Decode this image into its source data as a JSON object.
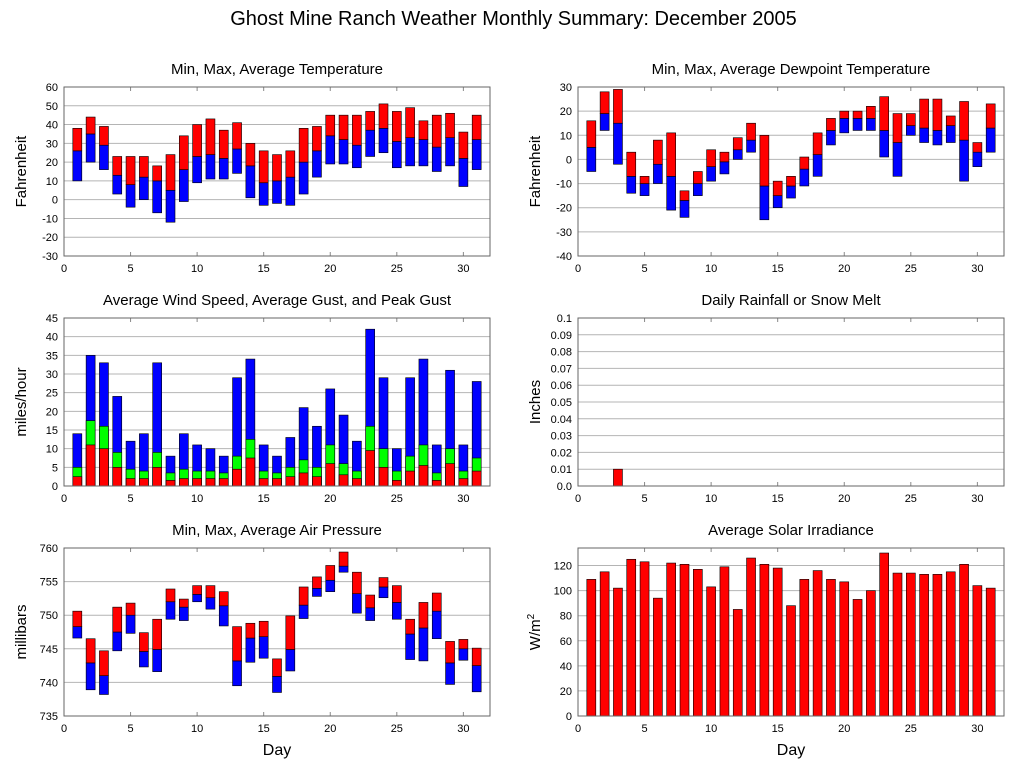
{
  "title": "Ghost Mine Ranch Weather Monthly Summary: December 2005",
  "colors": {
    "red": "#ff0000",
    "blue": "#0000ff",
    "green": "#00ff00",
    "grid": "#b4b4b4",
    "frame": "#666666"
  },
  "chart_data": [
    {
      "id": "temperature",
      "type": "bar",
      "subtype": "floating-range",
      "title": "Min, Max, Average Temperature",
      "xlabel": "",
      "ylabel": "Fahrenheit",
      "xlim": [
        0,
        32
      ],
      "ylim": [
        -30,
        60
      ],
      "xticks": [
        0,
        5,
        10,
        15,
        20,
        25,
        30
      ],
      "yticks": [
        -30,
        -20,
        -10,
        0,
        10,
        20,
        30,
        40,
        50,
        60
      ],
      "grid": true,
      "x": [
        1,
        2,
        3,
        4,
        5,
        6,
        7,
        8,
        9,
        10,
        11,
        12,
        13,
        14,
        15,
        16,
        17,
        18,
        19,
        20,
        21,
        22,
        23,
        24,
        25,
        26,
        27,
        28,
        29,
        30,
        31
      ],
      "series": [
        {
          "name": "Max",
          "values": [
            38,
            44,
            39,
            23,
            23,
            23,
            18,
            24,
            34,
            40,
            43,
            37,
            41,
            30,
            26,
            24,
            26,
            38,
            39,
            45,
            45,
            45,
            47,
            51,
            47,
            49,
            42,
            45,
            46,
            36,
            45
          ]
        },
        {
          "name": "Average",
          "values": [
            26,
            35,
            29,
            13,
            8,
            12,
            10,
            5,
            16,
            23,
            24,
            22,
            27,
            18,
            9,
            10,
            12,
            20,
            26,
            34,
            32,
            29,
            37,
            38,
            31,
            33,
            32,
            28,
            33,
            22,
            32
          ]
        },
        {
          "name": "Min",
          "values": [
            10,
            20,
            16,
            3,
            -4,
            0,
            -7,
            -12,
            -1,
            9,
            11,
            11,
            14,
            1,
            -3,
            -2,
            -3,
            3,
            12,
            19,
            19,
            17,
            23,
            25,
            17,
            18,
            18,
            15,
            18,
            7,
            16
          ]
        }
      ]
    },
    {
      "id": "dewpoint",
      "type": "bar",
      "subtype": "floating-range",
      "title": "Min, Max, Average Dewpoint Temperature",
      "xlabel": "",
      "ylabel": "Fahrenheit",
      "xlim": [
        0,
        32
      ],
      "ylim": [
        -40,
        30
      ],
      "xticks": [
        0,
        5,
        10,
        15,
        20,
        25,
        30
      ],
      "yticks": [
        -40,
        -30,
        -20,
        -10,
        0,
        10,
        20,
        30
      ],
      "grid": true,
      "x": [
        1,
        2,
        3,
        4,
        5,
        6,
        7,
        8,
        9,
        10,
        11,
        12,
        13,
        14,
        15,
        16,
        17,
        18,
        19,
        20,
        21,
        22,
        23,
        24,
        25,
        26,
        27,
        28,
        29,
        30,
        31
      ],
      "series": [
        {
          "name": "Max",
          "values": [
            16,
            28,
            29,
            3,
            -7,
            8,
            11,
            -13,
            -5,
            4,
            3,
            9,
            15,
            10,
            -9,
            -7,
            1,
            11,
            17,
            20,
            20,
            22,
            26,
            19,
            19,
            25,
            25,
            18,
            24,
            7,
            23
          ]
        },
        {
          "name": "Average",
          "values": [
            5,
            19,
            15,
            -7,
            -10,
            -2,
            -7,
            -17,
            -10,
            -3,
            -1,
            4,
            8,
            -11,
            -15,
            -11,
            -4,
            2,
            12,
            17,
            17,
            17,
            12,
            7,
            14,
            13,
            12,
            14,
            8,
            3,
            13
          ]
        },
        {
          "name": "Min",
          "values": [
            -5,
            12,
            -2,
            -14,
            -15,
            -10,
            -21,
            -24,
            -15,
            -9,
            -6,
            0,
            3,
            -25,
            -20,
            -16,
            -11,
            -7,
            6,
            11,
            12,
            12,
            1,
            -7,
            10,
            7,
            6,
            7,
            -9,
            -3,
            3
          ]
        }
      ]
    },
    {
      "id": "wind",
      "type": "bar",
      "subtype": "stacked-overlay",
      "title": "Average Wind Speed, Average Gust, and Peak Gust",
      "xlabel": "",
      "ylabel": "miles/hour",
      "xlim": [
        0,
        32
      ],
      "ylim": [
        0,
        45
      ],
      "xticks": [
        0,
        5,
        10,
        15,
        20,
        25,
        30
      ],
      "yticks": [
        0,
        5,
        10,
        15,
        20,
        25,
        30,
        35,
        40,
        45
      ],
      "grid": true,
      "x": [
        1,
        2,
        3,
        4,
        5,
        6,
        7,
        8,
        9,
        10,
        11,
        12,
        13,
        14,
        15,
        16,
        17,
        18,
        19,
        20,
        21,
        22,
        23,
        24,
        25,
        26,
        27,
        28,
        29,
        30,
        31
      ],
      "series": [
        {
          "name": "Peak Gust",
          "values": [
            14,
            35,
            33,
            24,
            12,
            14,
            33,
            8,
            14,
            11,
            10,
            8,
            29,
            34,
            11,
            8,
            13,
            21,
            16,
            26,
            19,
            12,
            42,
            29,
            10,
            29,
            34,
            11,
            31,
            11,
            28
          ]
        },
        {
          "name": "Average Gust",
          "values": [
            5,
            17.5,
            16,
            9,
            4.5,
            4,
            9,
            3.5,
            4.5,
            4,
            4,
            3.5,
            8,
            12.5,
            4,
            3.5,
            5,
            7,
            5,
            11,
            6,
            4,
            16,
            10,
            4,
            8,
            11,
            3.5,
            10,
            4,
            7.5
          ]
        },
        {
          "name": "Average Wind Speed",
          "values": [
            2.5,
            11,
            10,
            5,
            2,
            2,
            5,
            1.5,
            2,
            2,
            2,
            2,
            4.5,
            7.5,
            2,
            2,
            2.5,
            3.5,
            2.5,
            6,
            3,
            2,
            9.5,
            5,
            1.5,
            4,
            5.5,
            1.5,
            6,
            2,
            4
          ]
        }
      ]
    },
    {
      "id": "rainfall",
      "type": "bar",
      "title": "Daily Rainfall or Snow Melt",
      "xlabel": "",
      "ylabel": "Inches",
      "xlim": [
        0,
        32
      ],
      "ylim": [
        0,
        0.1
      ],
      "xticks": [
        0,
        5,
        10,
        15,
        20,
        25,
        30
      ],
      "yticks": [
        "0.0",
        "0.01",
        "0.02",
        "0.03",
        "0.04",
        "0.05",
        "0.06",
        "0.07",
        "0.08",
        "0.09",
        "0.1"
      ],
      "grid": true,
      "x": [
        1,
        2,
        3,
        4,
        5,
        6,
        7,
        8,
        9,
        10,
        11,
        12,
        13,
        14,
        15,
        16,
        17,
        18,
        19,
        20,
        21,
        22,
        23,
        24,
        25,
        26,
        27,
        28,
        29,
        30,
        31
      ],
      "values": [
        0,
        0,
        0.01,
        0,
        0,
        0,
        0,
        0,
        0,
        0,
        0,
        0,
        0,
        0,
        0,
        0,
        0,
        0,
        0,
        0,
        0,
        0,
        0,
        0,
        0,
        0,
        0,
        0,
        0,
        0,
        0
      ]
    },
    {
      "id": "pressure",
      "type": "bar",
      "subtype": "floating-range",
      "title": "Min, Max, Average Air Pressure",
      "xlabel": "Day",
      "ylabel": "millibars",
      "xlim": [
        0,
        32
      ],
      "ylim": [
        735,
        760
      ],
      "xticks": [
        0,
        5,
        10,
        15,
        20,
        25,
        30
      ],
      "yticks": [
        735,
        740,
        745,
        750,
        755,
        760
      ],
      "grid": true,
      "x": [
        1,
        2,
        3,
        4,
        5,
        6,
        7,
        8,
        9,
        10,
        11,
        12,
        13,
        14,
        15,
        16,
        17,
        18,
        19,
        20,
        21,
        22,
        23,
        24,
        25,
        26,
        27,
        28,
        29,
        30,
        31
      ],
      "series": [
        {
          "name": "Max",
          "values": [
            750.6,
            746.5,
            744.7,
            751.2,
            751.8,
            747.4,
            749.4,
            753.9,
            752.4,
            754.4,
            754.4,
            753.5,
            748.3,
            748.8,
            749.1,
            743.5,
            749.9,
            754.2,
            755.7,
            757.4,
            759.4,
            756.4,
            753.0,
            755.6,
            754.4,
            749.4,
            751.9,
            753.3,
            746.1,
            746.4,
            745.1
          ]
        },
        {
          "name": "Average",
          "values": [
            748.3,
            742.9,
            741.0,
            747.5,
            750.0,
            744.6,
            744.9,
            752.0,
            751.2,
            753.1,
            752.6,
            751.4,
            743.2,
            746.6,
            746.8,
            740.9,
            744.9,
            751.5,
            754.0,
            755.2,
            757.3,
            753.2,
            751.1,
            754.2,
            751.9,
            747.2,
            748.1,
            750.6,
            742.9,
            745.0,
            742.5
          ]
        },
        {
          "name": "Min",
          "values": [
            746.6,
            738.9,
            738.2,
            744.7,
            747.3,
            742.3,
            741.6,
            749.4,
            749.2,
            752.0,
            750.9,
            748.4,
            739.5,
            743.0,
            743.6,
            738.5,
            741.7,
            749.5,
            752.8,
            753.5,
            756.4,
            750.3,
            749.2,
            752.6,
            749.4,
            743.4,
            743.2,
            746.5,
            739.7,
            743.3,
            738.6
          ]
        }
      ]
    },
    {
      "id": "solar",
      "type": "bar",
      "title": "Average Solar Irradiance",
      "xlabel": "Day",
      "ylabel": "W/m",
      "ylabel_superscript": "2",
      "xlim": [
        0,
        32
      ],
      "ylim": [
        0,
        134
      ],
      "xticks": [
        0,
        5,
        10,
        15,
        20,
        25,
        30
      ],
      "yticks": [
        0,
        20,
        40,
        60,
        80,
        100,
        120
      ],
      "grid": true,
      "x": [
        1,
        2,
        3,
        4,
        5,
        6,
        7,
        8,
        9,
        10,
        11,
        12,
        13,
        14,
        15,
        16,
        17,
        18,
        19,
        20,
        21,
        22,
        23,
        24,
        25,
        26,
        27,
        28,
        29,
        30,
        31
      ],
      "values": [
        109,
        115,
        102,
        125,
        123,
        94,
        122,
        121,
        117,
        103,
        119,
        85,
        126,
        121,
        118,
        88,
        109,
        116,
        109,
        107,
        93,
        100,
        130,
        114,
        114,
        113,
        113,
        115,
        121,
        104,
        102
      ]
    }
  ]
}
